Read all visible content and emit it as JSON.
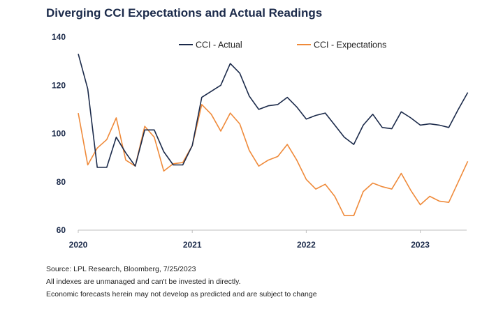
{
  "chart_data": {
    "type": "line",
    "title": "Diverging CCI Expectations and Actual Readings",
    "xlabel": "",
    "ylabel": "",
    "ylim": [
      60,
      140
    ],
    "yticks": [
      60,
      80,
      100,
      120,
      140
    ],
    "xlim": [
      "2020-01",
      "2023-07"
    ],
    "xticks": [
      "2020",
      "2021",
      "2022",
      "2023"
    ],
    "grid": false,
    "legend": "top-center",
    "series": [
      {
        "name": "CCI - Actual",
        "color": "#1b2a4a",
        "x": [
          "2020-01",
          "2020-02",
          "2020-03",
          "2020-04",
          "2020-05",
          "2020-06",
          "2020-07",
          "2020-08",
          "2020-09",
          "2020-10",
          "2020-11",
          "2020-12",
          "2021-01",
          "2021-02",
          "2021-03",
          "2021-04",
          "2021-05",
          "2021-06",
          "2021-07",
          "2021-08",
          "2021-09",
          "2021-10",
          "2021-11",
          "2021-12",
          "2022-01",
          "2022-02",
          "2022-03",
          "2022-04",
          "2022-05",
          "2022-06",
          "2022-07",
          "2022-08",
          "2022-09",
          "2022-10",
          "2022-11",
          "2022-12",
          "2023-01",
          "2023-02",
          "2023-03",
          "2023-04",
          "2023-05",
          "2023-06"
        ],
        "values": [
          133,
          118.5,
          86,
          86,
          98.5,
          92,
          86.5,
          101.5,
          101.5,
          92.5,
          87,
          87,
          95,
          115,
          117.5,
          120,
          129,
          125,
          115.5,
          110,
          111.5,
          112,
          115,
          111,
          106,
          107.5,
          108.5,
          103.5,
          98.5,
          95.5,
          103.5,
          108,
          102.5,
          102,
          109,
          106.5,
          103.5,
          104,
          103.5,
          102.5,
          110,
          117
        ]
      },
      {
        "name": "CCI - Expectations",
        "color": "#ef8a3a",
        "x": [
          "2020-01",
          "2020-02",
          "2020-03",
          "2020-04",
          "2020-05",
          "2020-06",
          "2020-07",
          "2020-08",
          "2020-09",
          "2020-10",
          "2020-11",
          "2020-12",
          "2021-01",
          "2021-02",
          "2021-03",
          "2021-04",
          "2021-05",
          "2021-06",
          "2021-07",
          "2021-08",
          "2021-09",
          "2021-10",
          "2021-11",
          "2021-12",
          "2022-01",
          "2022-02",
          "2022-03",
          "2022-04",
          "2022-05",
          "2022-06",
          "2022-07",
          "2022-08",
          "2022-09",
          "2022-10",
          "2022-11",
          "2022-12",
          "2023-01",
          "2023-02",
          "2023-03",
          "2023-04",
          "2023-05",
          "2023-06"
        ],
        "values": [
          108.5,
          87,
          94,
          97.5,
          106.5,
          89,
          86.5,
          103,
          98.5,
          84.5,
          87.5,
          88,
          95,
          112,
          108,
          101,
          108.5,
          104,
          93,
          86.5,
          89,
          90.5,
          95.5,
          89,
          81,
          77,
          79,
          74,
          66,
          66,
          76,
          79.5,
          78,
          77,
          83.5,
          76.5,
          70.5,
          74,
          72,
          71.5,
          80,
          88.5
        ]
      }
    ]
  },
  "notes": {
    "source": "Source: LPL Research, Bloomberg, 7/25/2023",
    "line1": "All indexes are unmanaged and can't be invested in directly.",
    "line2": "Economic forecasts herein may not develop as predicted and are subject to change"
  }
}
